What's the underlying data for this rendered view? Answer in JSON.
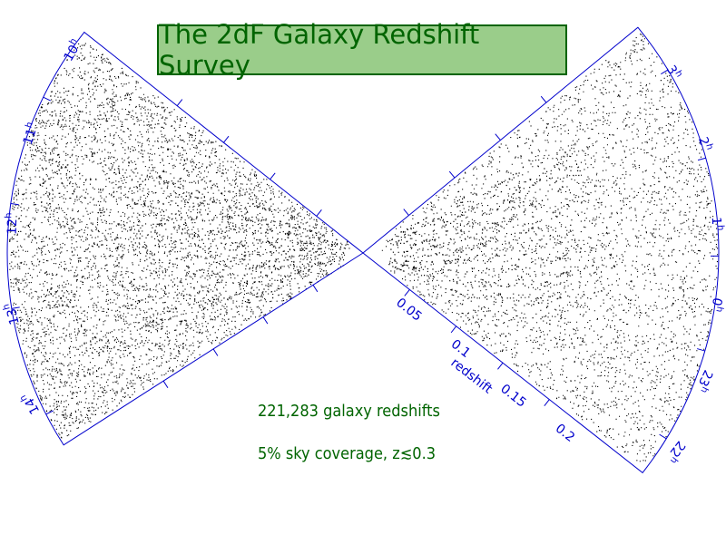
{
  "title": "The 2dF Galaxy Redshift Survey",
  "stats": {
    "count": "221,283 galaxy redshifts",
    "coverage": "5% sky coverage, z≲0.3"
  },
  "colors": {
    "accent": "#006400",
    "title_bg": "#9acd8a",
    "axis": "#0000cc"
  },
  "redshift_axis": {
    "label": "redshift",
    "ticks": [
      {
        "z": 0.05,
        "label": "0.05"
      },
      {
        "z": 0.1,
        "label": "0.1"
      },
      {
        "z": 0.15,
        "label": "0.15"
      },
      {
        "z": 0.2,
        "label": "0.2"
      }
    ]
  },
  "left_wedge": {
    "hours": [
      {
        "label": "10",
        "sup": "h"
      },
      {
        "label": "11",
        "sup": "h"
      },
      {
        "label": "12",
        "sup": "h"
      },
      {
        "label": "13",
        "sup": "h"
      },
      {
        "label": "14",
        "sup": "h"
      }
    ]
  },
  "right_wedge": {
    "hours": [
      {
        "label": "3",
        "sup": "h"
      },
      {
        "label": "2",
        "sup": "h"
      },
      {
        "label": "1",
        "sup": "h"
      },
      {
        "label": "0",
        "sup": "h"
      },
      {
        "label": "23",
        "sup": "h"
      },
      {
        "label": "22",
        "sup": "h"
      }
    ]
  }
}
